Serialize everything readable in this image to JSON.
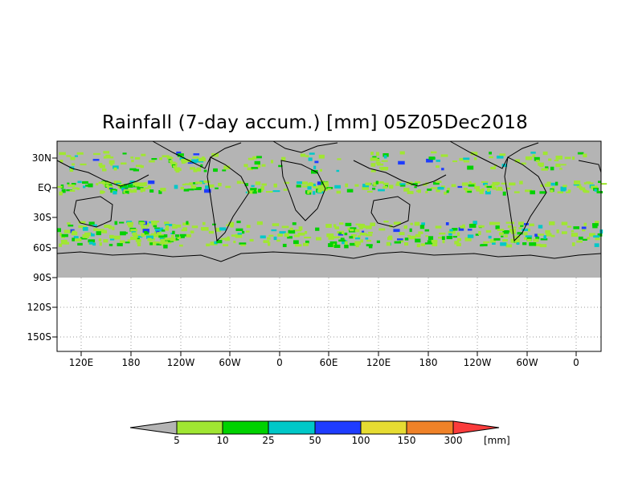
{
  "title": "Rainfall (7-day accum.) [mm] 05Z05Dec2018",
  "map": {
    "lat_labels": [
      "30N",
      "EQ",
      "30S",
      "60S",
      "90S",
      "120S",
      "150S"
    ],
    "lon_labels": [
      "120E",
      "180",
      "120W",
      "60W",
      "0",
      "60E",
      "120E",
      "180",
      "120W",
      "60W",
      "0"
    ],
    "colors": {
      "no_data_gray": "#b4b4b4",
      "coastline": "#000000"
    }
  },
  "colorbar": {
    "unit": "[mm]",
    "thresholds": [
      "5",
      "10",
      "25",
      "50",
      "100",
      "150",
      "300"
    ],
    "colors": [
      "#b4b4b4",
      "#a0e632",
      "#00d200",
      "#00c8c8",
      "#1e3cff",
      "#e6dc32",
      "#f08228",
      "#fa3c3c"
    ]
  }
}
